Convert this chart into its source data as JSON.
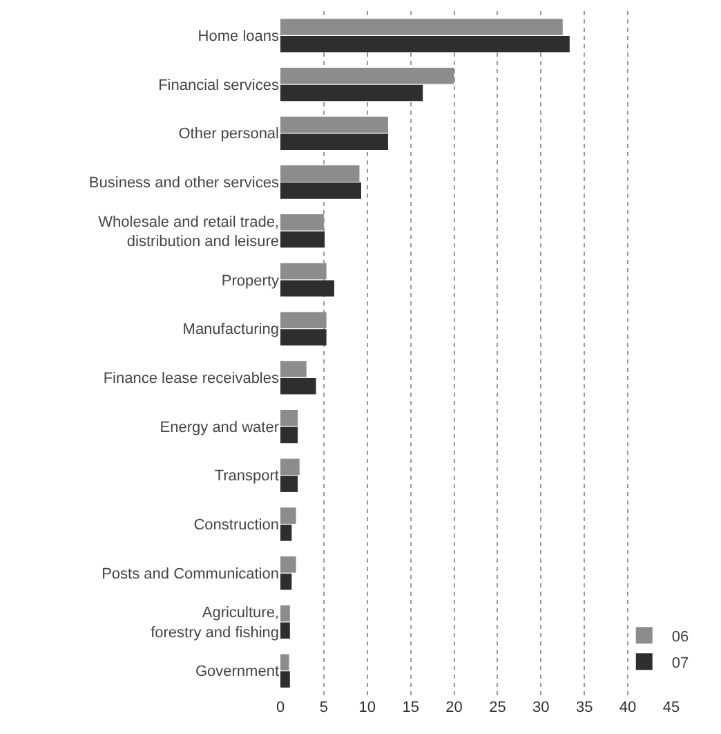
{
  "chart_data": {
    "type": "bar",
    "orientation": "horizontal",
    "categories": [
      "Home loans",
      "Financial services",
      "Other personal",
      "Business and other services",
      "Wholesale and retail trade, distribution and leisure",
      "Property",
      "Manufacturing",
      "Finance lease receivables",
      "Energy and water",
      "Transport",
      "Construction",
      "Posts and Communication",
      "Agriculture, forestry and fishing",
      "Government"
    ],
    "series": [
      {
        "name": "06",
        "color": "#8c8c8c",
        "values": [
          32.5,
          20,
          12.4,
          9.1,
          5,
          5.3,
          5.3,
          3,
          2,
          2.2,
          1.8,
          1.8,
          1.1,
          1
        ]
      },
      {
        "name": "07",
        "color": "#2e2e2e",
        "values": [
          33.3,
          16.4,
          12.4,
          9.3,
          5.1,
          6.2,
          5.3,
          4.1,
          2,
          2,
          1.3,
          1.3,
          1.1,
          1.1
        ]
      }
    ],
    "xlim": [
      0,
      45
    ],
    "xticks": [
      0,
      5,
      10,
      15,
      20,
      25,
      30,
      35,
      40,
      45
    ],
    "grid": "x",
    "legend": "bottom right"
  }
}
